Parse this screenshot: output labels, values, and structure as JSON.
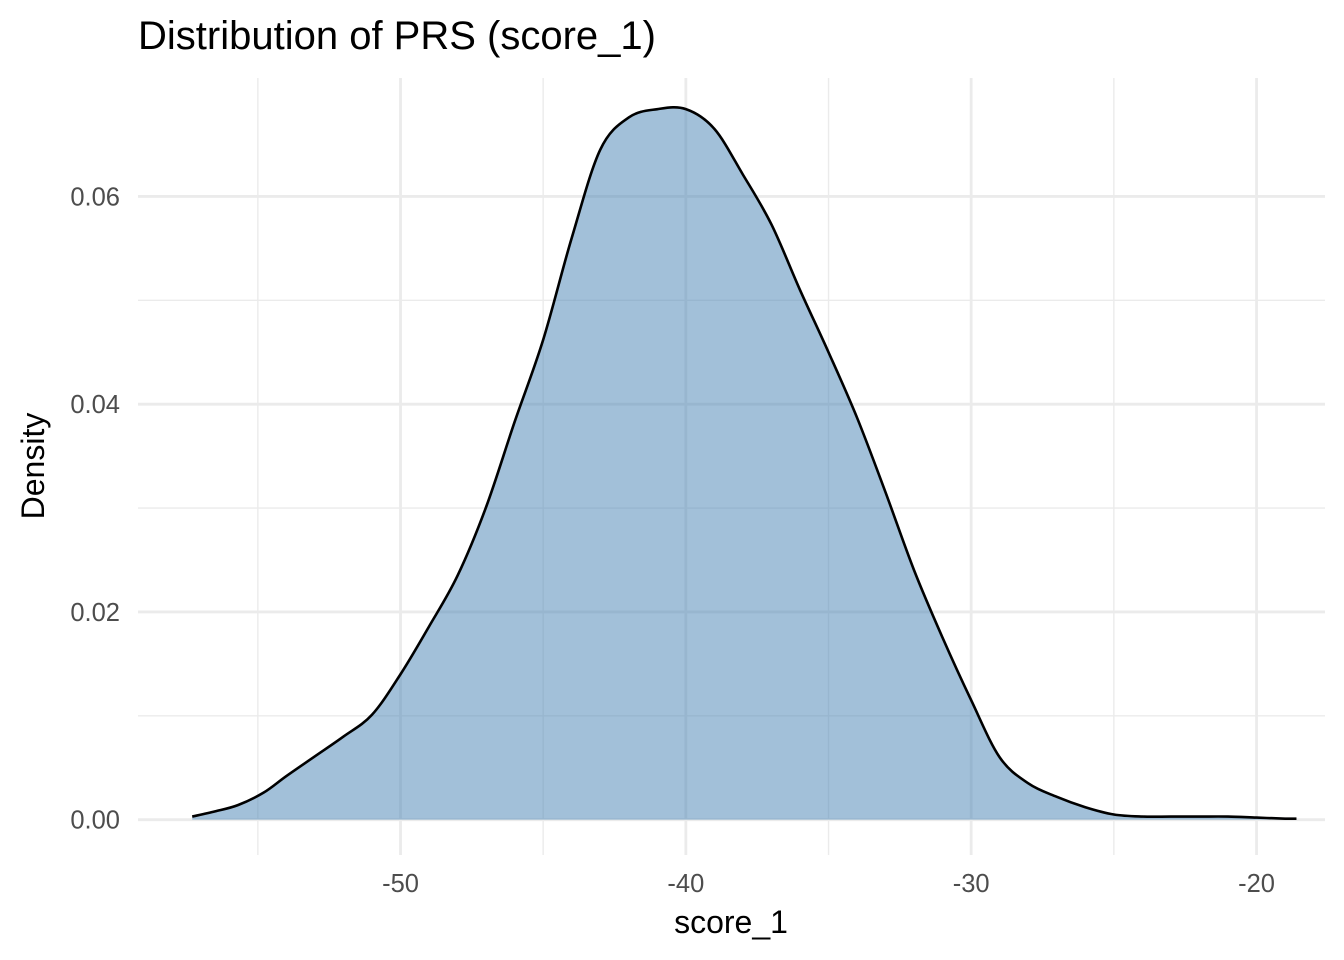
{
  "colors": {
    "fill": "#4682b4",
    "fill_opacity": 0.5,
    "outline": "#000000",
    "grid": "#ebebeb",
    "background": "#ffffff"
  },
  "chart_data": {
    "type": "area",
    "title": "Distribution of PRS (score_1)",
    "xlabel": "score_1",
    "ylabel": "Density",
    "xlim": [
      -59.2,
      -17.6
    ],
    "ylim": [
      -0.0034,
      0.0714
    ],
    "x_ticks": [
      -50,
      -40,
      -30,
      -20
    ],
    "x_tick_labels": [
      "-50",
      "-40",
      "-30",
      "-20"
    ],
    "x_minor_ticks": [
      -55,
      -45,
      -35,
      -25
    ],
    "y_ticks": [
      0.0,
      0.02,
      0.04,
      0.06
    ],
    "y_tick_labels": [
      "0.00",
      "0.02",
      "0.04",
      "0.06"
    ],
    "y_minor_ticks": [
      0.01,
      0.03,
      0.05
    ],
    "grid": true,
    "legend": "none",
    "series": [
      {
        "x": [
          -57.3,
          -56.5,
          -55.7,
          -54.8,
          -54.0,
          -53.0,
          -52.0,
          -51.0,
          -50.0,
          -49.0,
          -48.0,
          -47.0,
          -46.0,
          -45.0,
          -44.0,
          -43.0,
          -42.0,
          -41.0,
          -40.0,
          -39.0,
          -38.0,
          -37.0,
          -36.0,
          -35.0,
          -34.0,
          -33.0,
          -32.0,
          -31.0,
          -30.0,
          -29.0,
          -28.0,
          -27.0,
          -26.0,
          -25.0,
          -24.0,
          -23.0,
          -22.0,
          -21.0,
          -20.0,
          -19.0,
          -18.6
        ],
        "y": [
          0.0003,
          0.0008,
          0.0014,
          0.0026,
          0.0042,
          0.0061,
          0.008,
          0.0101,
          0.014,
          0.0186,
          0.0235,
          0.0301,
          0.0383,
          0.0462,
          0.056,
          0.0645,
          0.0676,
          0.0684,
          0.0684,
          0.0665,
          0.0621,
          0.0573,
          0.051,
          0.045,
          0.0387,
          0.0315,
          0.024,
          0.0175,
          0.0115,
          0.006,
          0.0035,
          0.0022,
          0.0012,
          0.0005,
          0.0003,
          0.0003,
          0.0003,
          0.0003,
          0.0002,
          0.0001,
          0.0001
        ]
      }
    ]
  }
}
